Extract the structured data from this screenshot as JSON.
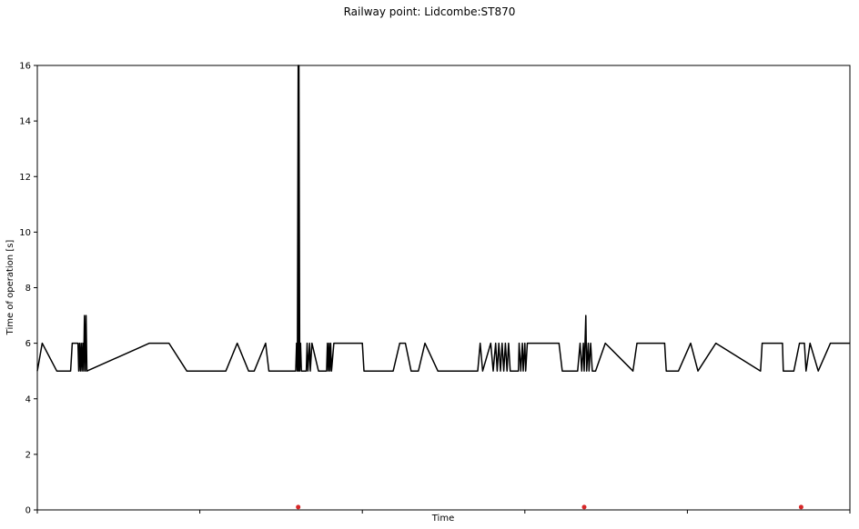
{
  "chart_data": {
    "type": "line",
    "title": "Railway point: Lidcombe:ST870",
    "xlabel": "Time",
    "ylabel": "Time of operation [s]",
    "xlim": [
      0,
      100
    ],
    "ylim": [
      0,
      16
    ],
    "yticks": [
      0,
      2,
      4,
      6,
      8,
      10,
      12,
      14,
      16
    ],
    "xticks": [
      0,
      20,
      40,
      60,
      80,
      100
    ],
    "grid": false,
    "series": [
      {
        "color": "#000000",
        "points": [
          [
            0.0,
            5.0
          ],
          [
            0.6,
            6.0
          ],
          [
            2.4,
            5.0
          ],
          [
            4.1,
            5.0
          ],
          [
            4.3,
            6.0
          ],
          [
            5.0,
            6.0
          ],
          [
            5.1,
            5.0
          ],
          [
            5.2,
            6.0
          ],
          [
            5.3,
            5.0
          ],
          [
            5.4,
            6.0
          ],
          [
            5.5,
            5.0
          ],
          [
            5.6,
            6.0
          ],
          [
            5.7,
            5.0
          ],
          [
            5.8,
            7.0
          ],
          [
            5.9,
            5.0
          ],
          [
            6.0,
            7.0
          ],
          [
            6.1,
            5.0
          ],
          [
            13.8,
            6.0
          ],
          [
            16.2,
            6.0
          ],
          [
            18.4,
            5.0
          ],
          [
            23.2,
            5.0
          ],
          [
            24.6,
            6.0
          ],
          [
            26.0,
            5.0
          ],
          [
            26.7,
            5.0
          ],
          [
            28.1,
            6.0
          ],
          [
            28.5,
            5.0
          ],
          [
            31.8,
            5.0
          ],
          [
            31.9,
            6.0
          ],
          [
            32.0,
            5.0
          ],
          [
            32.1,
            16.0
          ],
          [
            32.15,
            5.0
          ],
          [
            32.2,
            16.0
          ],
          [
            32.3,
            5.0
          ],
          [
            32.4,
            6.0
          ],
          [
            32.5,
            5.0
          ],
          [
            33.1,
            5.0
          ],
          [
            33.2,
            6.0
          ],
          [
            33.3,
            5.0
          ],
          [
            33.5,
            6.0
          ],
          [
            33.6,
            5.0
          ],
          [
            33.8,
            6.0
          ],
          [
            34.6,
            5.0
          ],
          [
            35.6,
            5.0
          ],
          [
            35.7,
            6.0
          ],
          [
            35.8,
            5.0
          ],
          [
            35.9,
            6.0
          ],
          [
            36.0,
            5.0
          ],
          [
            36.1,
            6.0
          ],
          [
            36.2,
            5.0
          ],
          [
            36.5,
            6.0
          ],
          [
            40.0,
            6.0
          ],
          [
            40.2,
            5.0
          ],
          [
            43.8,
            5.0
          ],
          [
            44.6,
            6.0
          ],
          [
            45.3,
            6.0
          ],
          [
            46.0,
            5.0
          ],
          [
            46.9,
            5.0
          ],
          [
            47.7,
            6.0
          ],
          [
            49.3,
            5.0
          ],
          [
            54.2,
            5.0
          ],
          [
            54.5,
            6.0
          ],
          [
            54.8,
            5.0
          ],
          [
            55.8,
            6.0
          ],
          [
            56.1,
            5.0
          ],
          [
            56.4,
            6.0
          ],
          [
            56.6,
            5.0
          ],
          [
            56.8,
            6.0
          ],
          [
            57.0,
            5.0
          ],
          [
            57.2,
            6.0
          ],
          [
            57.4,
            5.0
          ],
          [
            57.6,
            6.0
          ],
          [
            57.8,
            5.0
          ],
          [
            58.0,
            6.0
          ],
          [
            58.2,
            5.0
          ],
          [
            59.2,
            5.0
          ],
          [
            59.3,
            6.0
          ],
          [
            59.5,
            5.0
          ],
          [
            59.7,
            6.0
          ],
          [
            59.8,
            5.0
          ],
          [
            60.0,
            6.0
          ],
          [
            60.1,
            5.0
          ],
          [
            60.3,
            6.0
          ],
          [
            64.2,
            6.0
          ],
          [
            64.6,
            5.0
          ],
          [
            66.5,
            5.0
          ],
          [
            66.8,
            6.0
          ],
          [
            67.0,
            5.0
          ],
          [
            67.2,
            6.0
          ],
          [
            67.3,
            5.0
          ],
          [
            67.5,
            7.0
          ],
          [
            67.6,
            5.0
          ],
          [
            67.8,
            6.0
          ],
          [
            67.9,
            5.0
          ],
          [
            68.1,
            6.0
          ],
          [
            68.3,
            5.0
          ],
          [
            68.7,
            5.0
          ],
          [
            69.9,
            6.0
          ],
          [
            73.3,
            5.0
          ],
          [
            73.8,
            6.0
          ],
          [
            77.2,
            6.0
          ],
          [
            77.4,
            5.0
          ],
          [
            78.9,
            5.0
          ],
          [
            80.4,
            6.0
          ],
          [
            81.3,
            5.0
          ],
          [
            83.5,
            6.0
          ],
          [
            89.0,
            5.0
          ],
          [
            89.2,
            6.0
          ],
          [
            91.7,
            6.0
          ],
          [
            91.8,
            5.0
          ],
          [
            93.1,
            5.0
          ],
          [
            93.8,
            6.0
          ],
          [
            94.4,
            6.0
          ],
          [
            94.6,
            5.0
          ],
          [
            95.1,
            6.0
          ],
          [
            96.1,
            5.0
          ],
          [
            97.6,
            6.0
          ],
          [
            100.0,
            6.0
          ]
        ]
      }
    ],
    "markers": {
      "color": "#d62728",
      "points": [
        [
          32.1,
          0.1
        ],
        [
          67.3,
          0.1
        ],
        [
          94.0,
          0.1
        ]
      ]
    }
  }
}
